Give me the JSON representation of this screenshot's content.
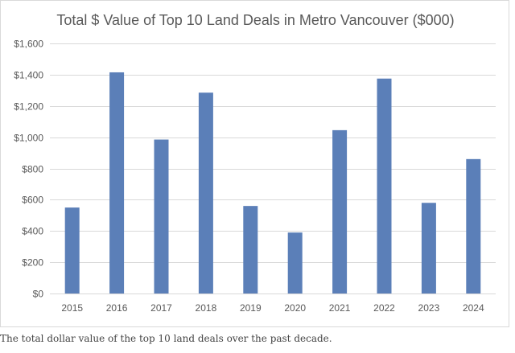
{
  "chart_data": {
    "type": "bar",
    "title": "Total $ Value of Top 10 Land Deals in Metro Vancouver ($000)",
    "xlabel": "",
    "ylabel": "",
    "categories": [
      "2015",
      "2016",
      "2017",
      "2018",
      "2019",
      "2020",
      "2021",
      "2022",
      "2023",
      "2024"
    ],
    "values": [
      550,
      1415,
      985,
      1285,
      560,
      390,
      1045,
      1375,
      580,
      860
    ],
    "ylim": [
      0,
      1600
    ],
    "yticks": [
      0,
      200,
      400,
      600,
      800,
      1000,
      1200,
      1400,
      1600
    ],
    "ytick_labels": [
      "$0",
      "$200",
      "$400",
      "$600",
      "$800",
      "$1,000",
      "$1,200",
      "$1,400",
      "$1,600"
    ],
    "grid": true,
    "legend": "none",
    "bar_color": "#5b7fb8",
    "grid_color": "#d9d9d9"
  },
  "caption": "The total dollar value of the top 10 land deals over the past decade."
}
